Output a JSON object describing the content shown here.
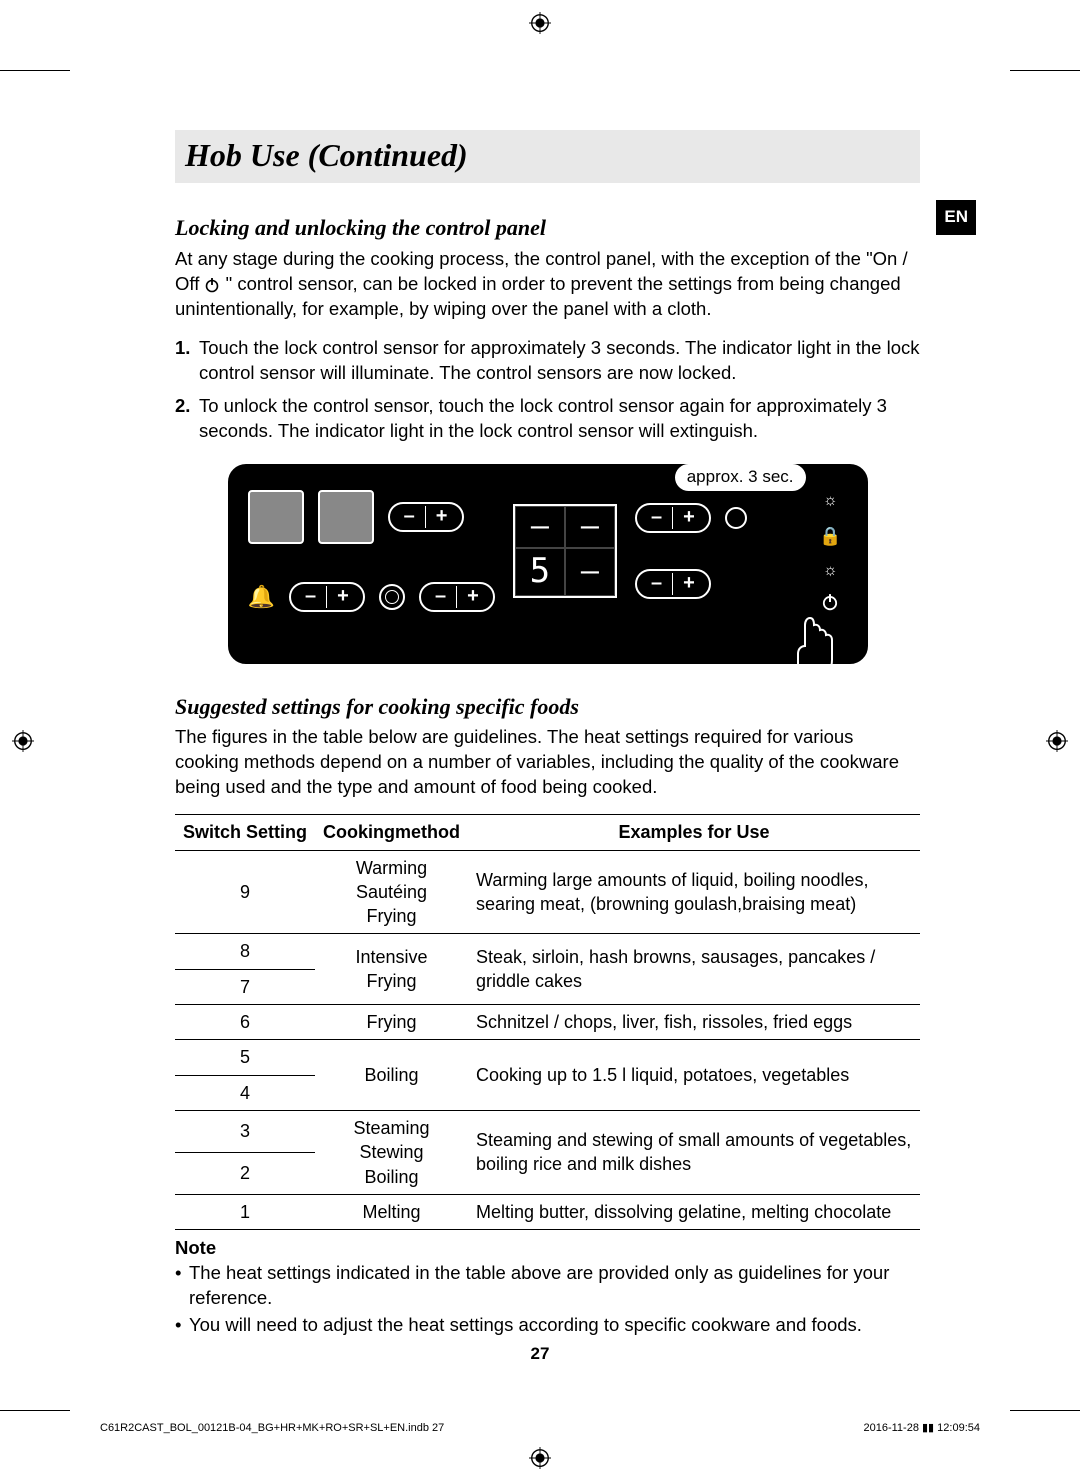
{
  "crop_marks": true,
  "header": {
    "title": "Hob Use (Continued)"
  },
  "lang_tab": "EN",
  "section1": {
    "heading": "Locking and unlocking the control panel",
    "intro_pre": "At any stage during the cooking process, the control panel, with the exception of the \"On / Off ",
    "intro_post": "\" control sensor, can be locked in order to prevent the settings from being changed unintentionally, for example, by wiping over the panel with a cloth.",
    "steps": [
      "Touch the lock control sensor for approximately 3 seconds.\nThe indicator light in the lock control sensor will illuminate. The control sensors are now locked.",
      "To unlock the control sensor, touch the lock control sensor again for approximately 3 seconds. The indicator light in the lock control sensor will extinguish."
    ]
  },
  "figure": {
    "callout": "approx. 3 sec.",
    "display_cells": [
      "–",
      "–",
      "5",
      "–"
    ],
    "pill_minus": "–",
    "pill_plus": "+",
    "icons": {
      "bell": "bell-icon",
      "ring": "ring-icon",
      "lock": "lock-icon",
      "sun": "sun-icon",
      "power": "power-icon",
      "finger": "pointer-finger-icon"
    }
  },
  "section2": {
    "heading": "Suggested settings for cooking specific foods",
    "intro": "The figures in the table below are guidelines. The heat settings required for various cooking methods depend on a number of variables, including the quality of the cookware being used and the type and amount of food being cooked."
  },
  "table": {
    "headers": [
      "Switch Setting",
      "Cookingmethod",
      "Examples for Use"
    ],
    "rows": [
      {
        "settings": [
          "9"
        ],
        "method": "Warming\nSautéing\nFrying",
        "example": "Warming large amounts of liquid, boiling noodles, searing meat, (browning goulash,braising meat)"
      },
      {
        "settings": [
          "8",
          "7"
        ],
        "method": "Intensive\nFrying",
        "example": "Steak, sirloin, hash browns, sausages, pancakes / griddle cakes"
      },
      {
        "settings": [
          "6"
        ],
        "method": "Frying",
        "example": "Schnitzel / chops, liver, fish, rissoles, fried eggs"
      },
      {
        "settings": [
          "5",
          "4"
        ],
        "method": "Boiling",
        "example": "Cooking up to 1.5 l liquid, potatoes, vegetables"
      },
      {
        "settings": [
          "3",
          "2"
        ],
        "method": "Steaming\nStewing\nBoiling",
        "example": "Steaming and stewing of small amounts of vegetables, boiling rice and milk dishes"
      },
      {
        "settings": [
          "1"
        ],
        "method": "Melting",
        "example": "Melting butter, dissolving gelatine, melting chocolate"
      }
    ]
  },
  "note": {
    "head": "Note",
    "items": [
      "The heat settings indicated in the table above are provided only as guidelines for your reference.",
      "You will need to adjust the heat settings according to specific cookware and foods."
    ]
  },
  "page_number": "27",
  "footer": {
    "left": "C61R2CAST_BOL_00121B-04_BG+HR+MK+RO+SR+SL+EN.indb   27",
    "right": "2016-11-28   ▮▮ 12:09:54"
  },
  "colors": {
    "title_bg": "#e8e8e8",
    "panel_bg": "#000000",
    "panel_fg": "#ffffff",
    "zone_fill": "#888888"
  }
}
